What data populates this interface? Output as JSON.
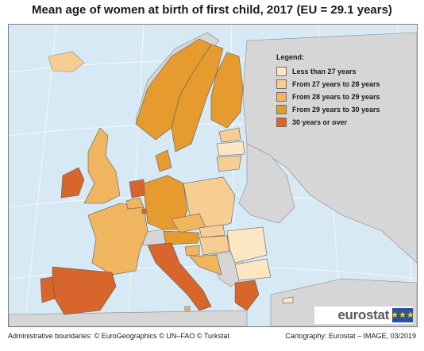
{
  "title": "Mean age of women at birth of first child, 2017 (EU = 29.1 years)",
  "legend": {
    "title": "Legend:",
    "items": [
      {
        "label": "Less than 27 years",
        "color": "#fce6c4"
      },
      {
        "label": "From 27 years to 28 years",
        "color": "#f6ce94"
      },
      {
        "label": "From 28 years to 29 years",
        "color": "#efb55f"
      },
      {
        "label": "From 29 years to 30 years",
        "color": "#e59b2e"
      },
      {
        "label": "30 years or over",
        "color": "#d7652c"
      }
    ]
  },
  "colors": {
    "sea": "#d7e9f4",
    "non_eu": "#d6d6d6",
    "border": "#6e6e6e",
    "graticule": "#ffffff"
  },
  "logo": {
    "text": "eurostat",
    "flag_color": "#2e4f9e",
    "star_color": "#f6d500",
    "flag_stars": "★★★"
  },
  "footer": {
    "left": "Administrative boundaries: © EuroGeographics © UN–FAO © Turkstat",
    "right": "Cartography: Eurostat – IMAGE, 03/2019"
  }
}
